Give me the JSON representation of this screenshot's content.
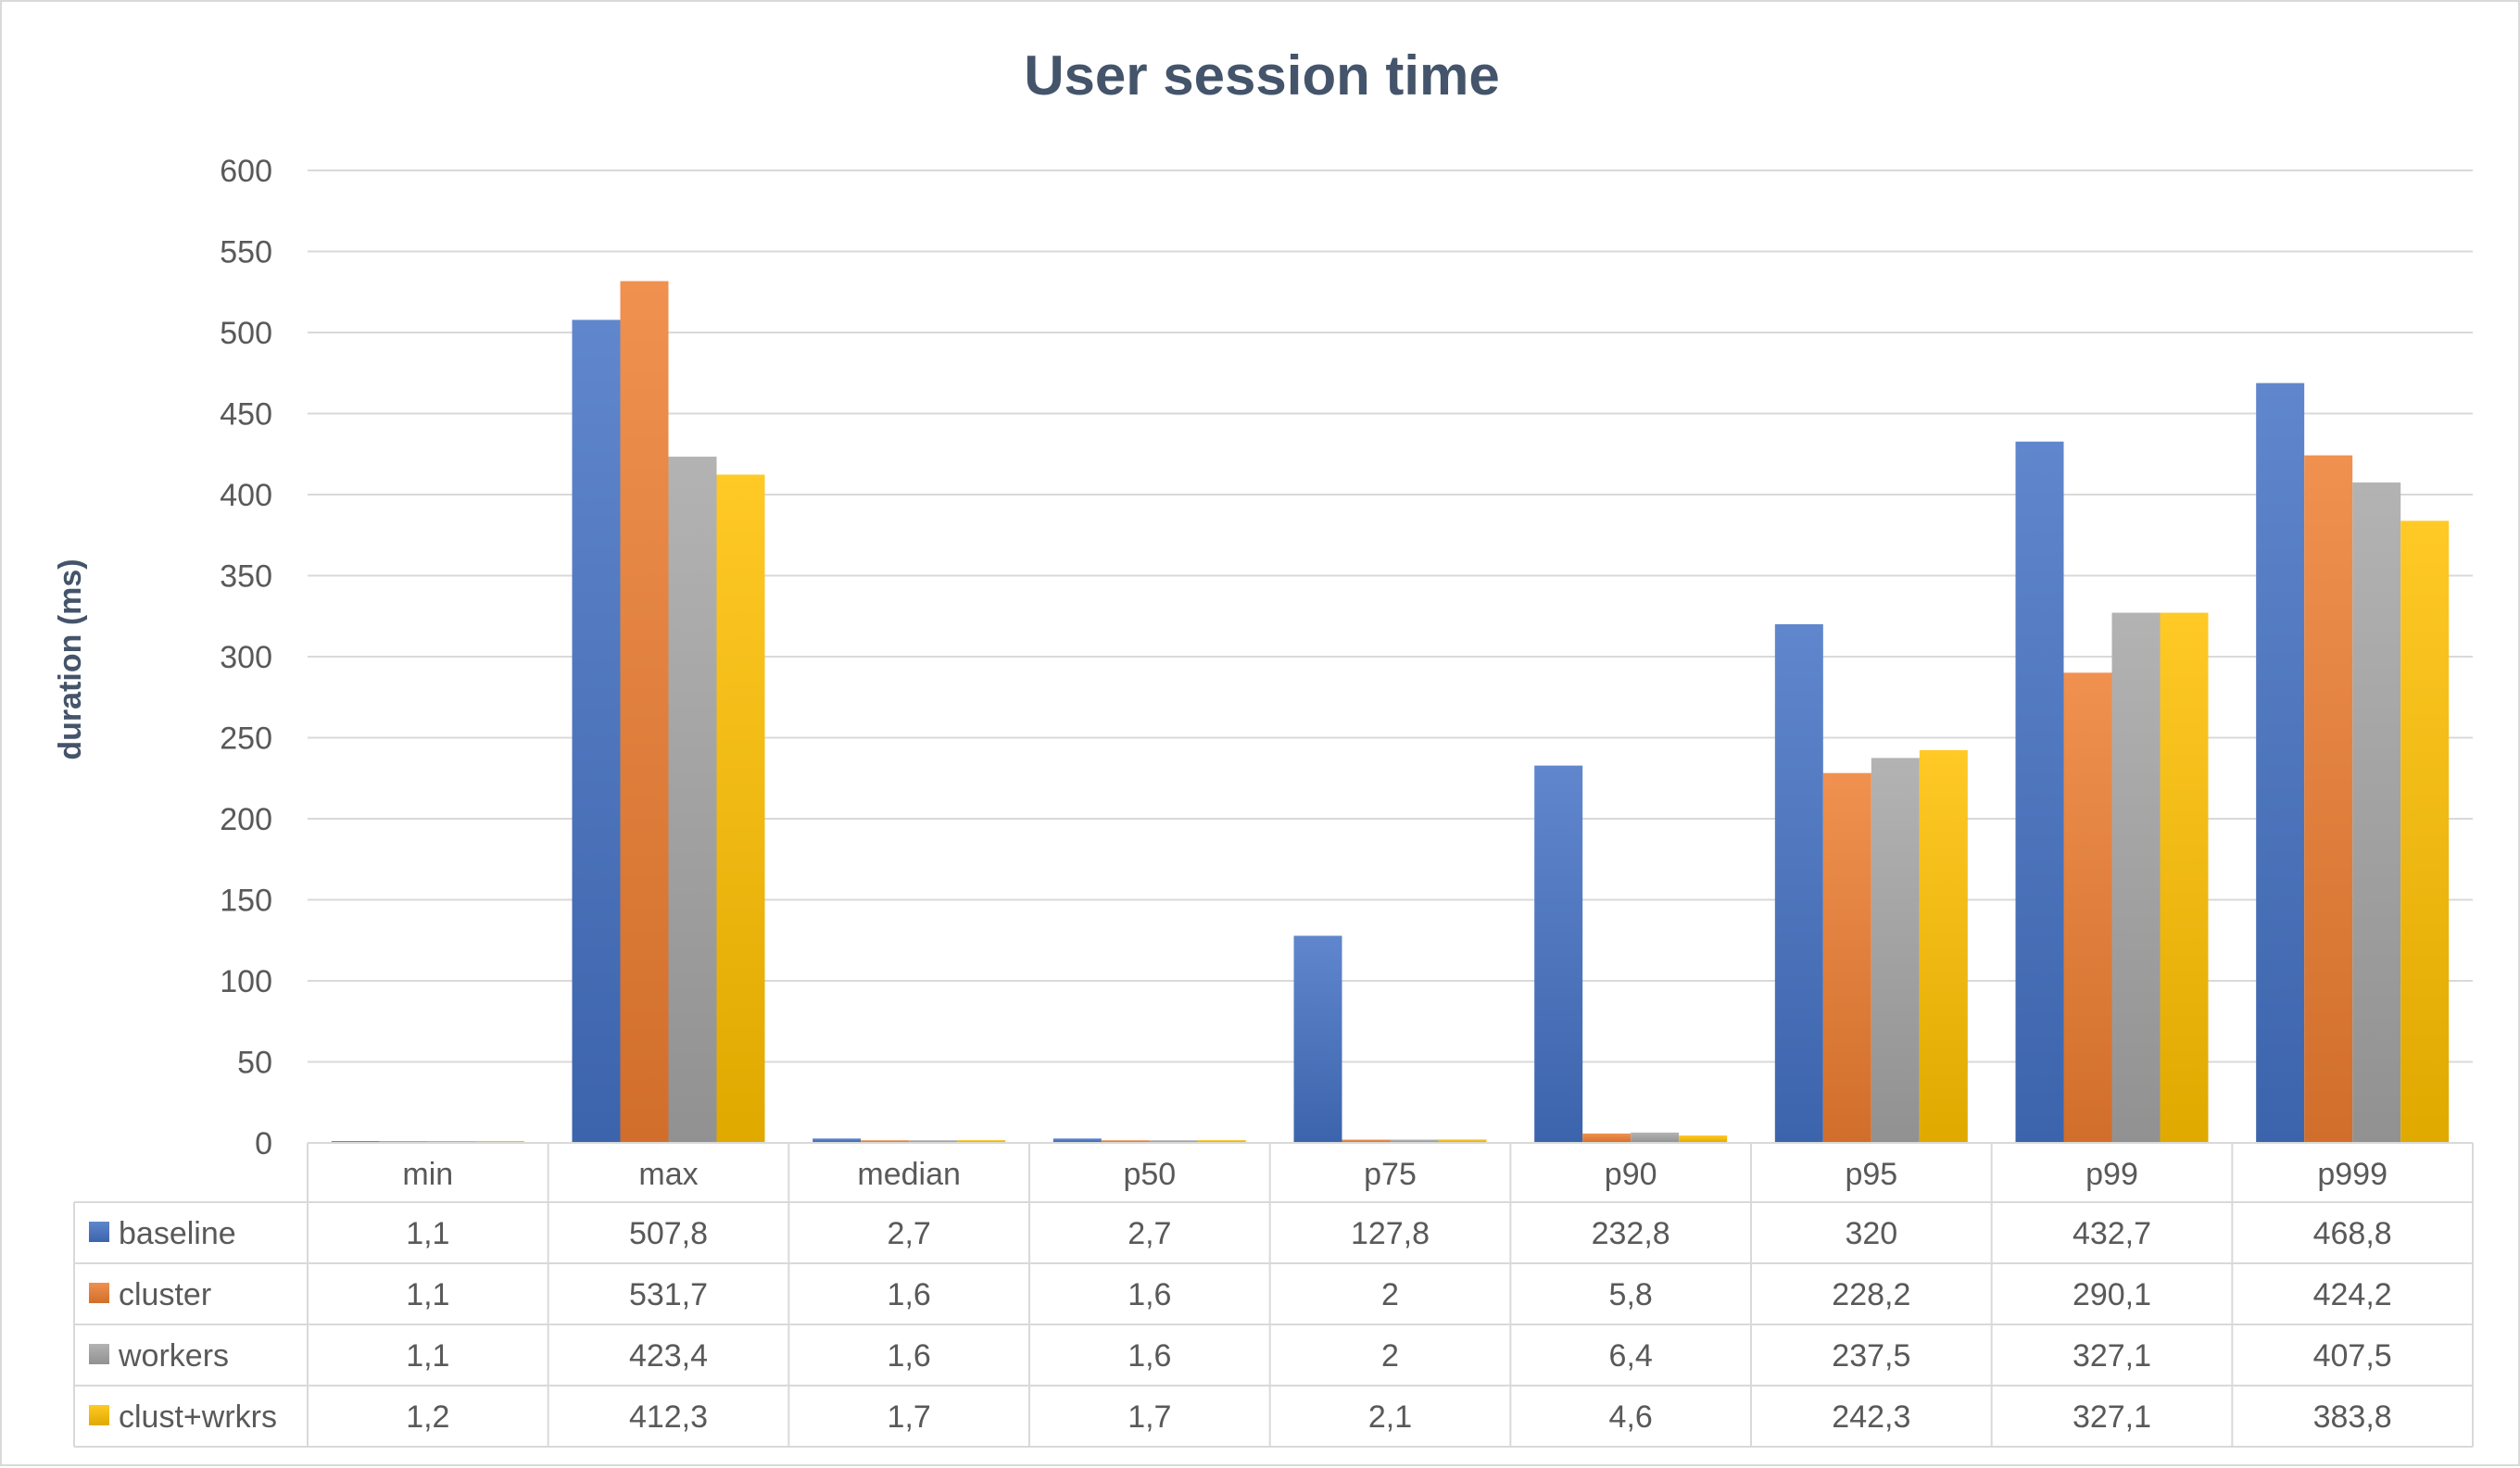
{
  "chart_data": {
    "type": "bar",
    "title": "User session time",
    "xlabel": "",
    "ylabel": "duration (ms)",
    "ylim": [
      0,
      600
    ],
    "yticks": [
      0,
      50,
      100,
      150,
      200,
      250,
      300,
      350,
      400,
      450,
      500,
      550,
      600
    ],
    "grid": true,
    "legend": "data-table",
    "categories": [
      "min",
      "max",
      "median",
      "p50",
      "p75",
      "p90",
      "p95",
      "p99",
      "p999"
    ],
    "series": [
      {
        "name": "baseline",
        "color": "#4472C4",
        "values": [
          1.1,
          507.8,
          2.7,
          2.7,
          127.8,
          232.8,
          320,
          432.7,
          468.8
        ],
        "labels": [
          "1,1",
          "507,8",
          "2,7",
          "2,7",
          "127,8",
          "232,8",
          "320",
          "432,7",
          "468,8"
        ]
      },
      {
        "name": "cluster",
        "color": "#ED7D31",
        "values": [
          1.1,
          531.7,
          1.6,
          1.6,
          2,
          5.8,
          228.2,
          290.1,
          424.2
        ],
        "labels": [
          "1,1",
          "531,7",
          "1,6",
          "1,6",
          "2",
          "5,8",
          "228,2",
          "290,1",
          "424,2"
        ]
      },
      {
        "name": "workers",
        "color": "#A5A5A5",
        "values": [
          1.1,
          423.4,
          1.6,
          1.6,
          2,
          6.4,
          237.5,
          327.1,
          407.5
        ],
        "labels": [
          "1,1",
          "423,4",
          "1,6",
          "1,6",
          "2",
          "6,4",
          "237,5",
          "327,1",
          "407,5"
        ]
      },
      {
        "name": "clust+wrkrs",
        "color": "#FFC000",
        "values": [
          1.2,
          412.3,
          1.7,
          1.7,
          2.1,
          4.6,
          242.3,
          327.1,
          383.8
        ],
        "labels": [
          "1,2",
          "412,3",
          "1,7",
          "1,7",
          "2,1",
          "4,6",
          "242,3",
          "327,1",
          "383,8"
        ]
      }
    ]
  }
}
